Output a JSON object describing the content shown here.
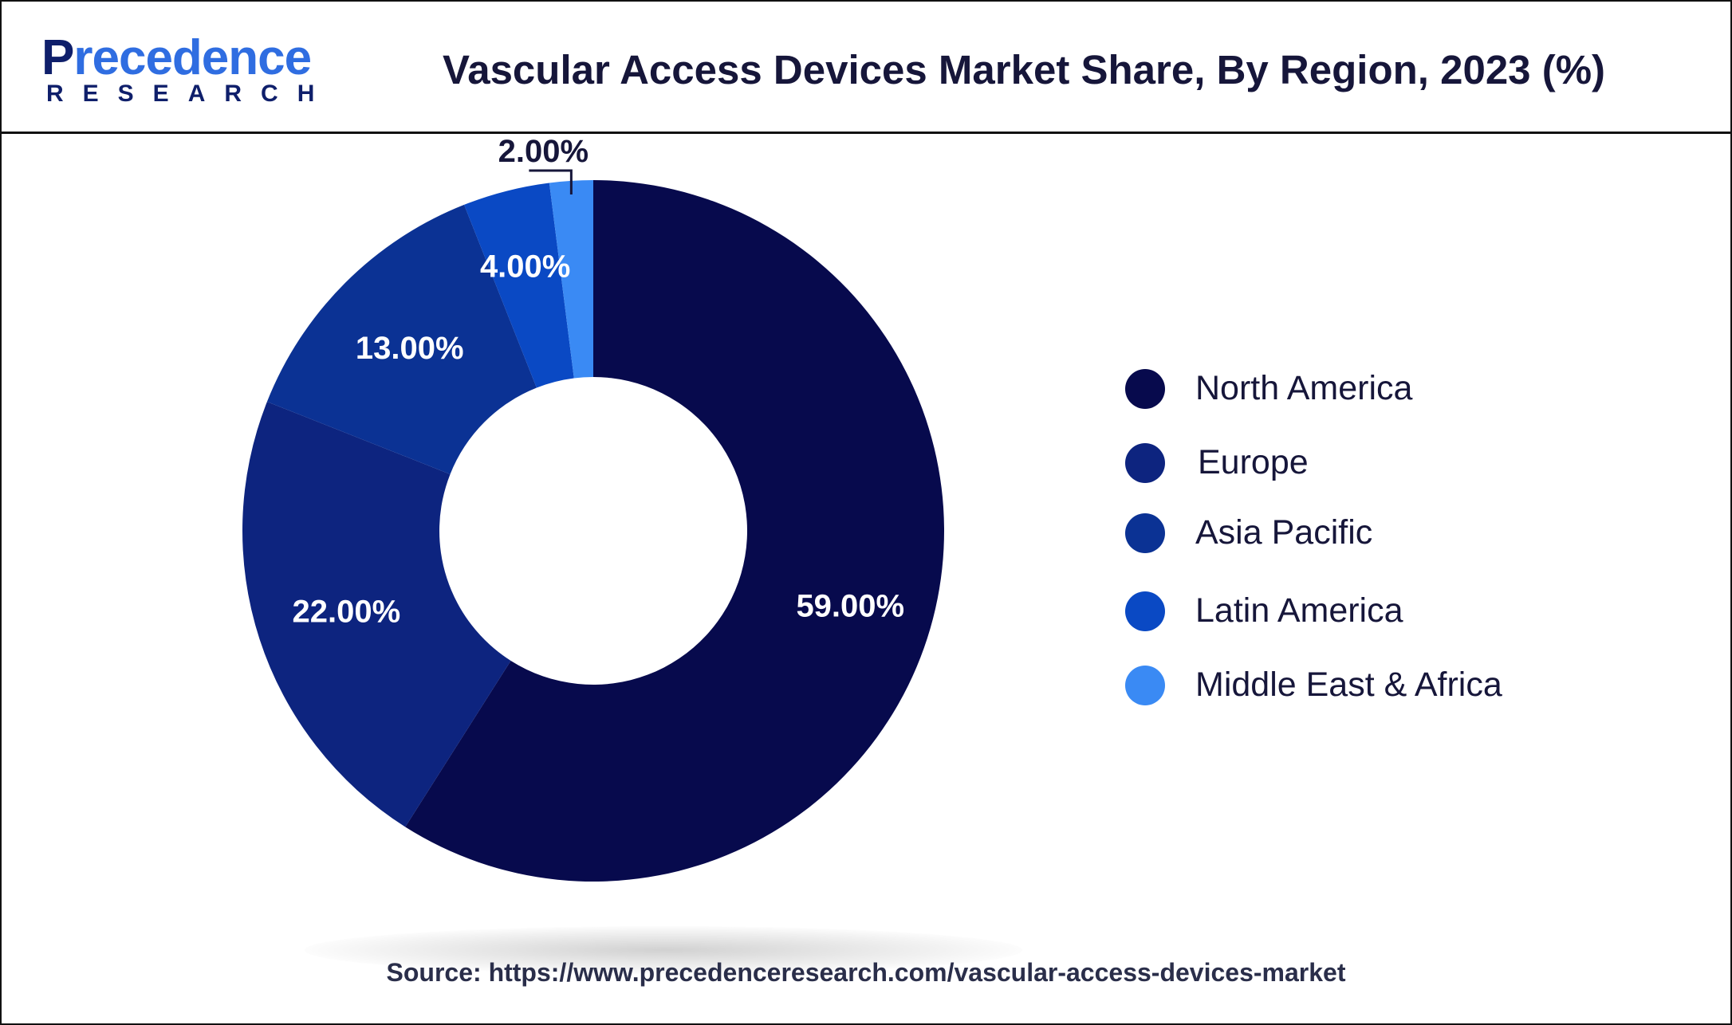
{
  "header": {
    "logo_main_1": "P",
    "logo_main_2": "recedence",
    "logo_sub": "RESEARCH",
    "title": "Vascular Access Devices Market Share, By Region, 2023 (%)"
  },
  "chart_data": {
    "type": "pie",
    "style": "donut",
    "title": "Vascular Access Devices Market Share, By Region, 2023 (%)",
    "categories": [
      "North America",
      "Europe",
      "Asia Pacific",
      "Latin America",
      "Middle East & Africa"
    ],
    "values": [
      59.0,
      22.0,
      13.0,
      4.0,
      2.0
    ],
    "value_labels": [
      "59.00%",
      "22.00%",
      "13.00%",
      "4.00%",
      "2.00%"
    ],
    "colors": [
      "#070a4d",
      "#0d247f",
      "#0b3294",
      "#0a49c4",
      "#3a8af4"
    ],
    "legend_position": "right"
  },
  "legend": {
    "items": [
      {
        "label": "North America",
        "color": "#070a4d"
      },
      {
        "label": "Europe",
        "color": "#0d247f"
      },
      {
        "label": "Asia Pacific",
        "color": "#0b3294"
      },
      {
        "label": "Latin America",
        "color": "#0a49c4"
      },
      {
        "label": "Middle East & Africa",
        "color": "#3a8af4"
      }
    ]
  },
  "footer": {
    "source": "Source: https://www.precedenceresearch.com/vascular-access-devices-market"
  }
}
